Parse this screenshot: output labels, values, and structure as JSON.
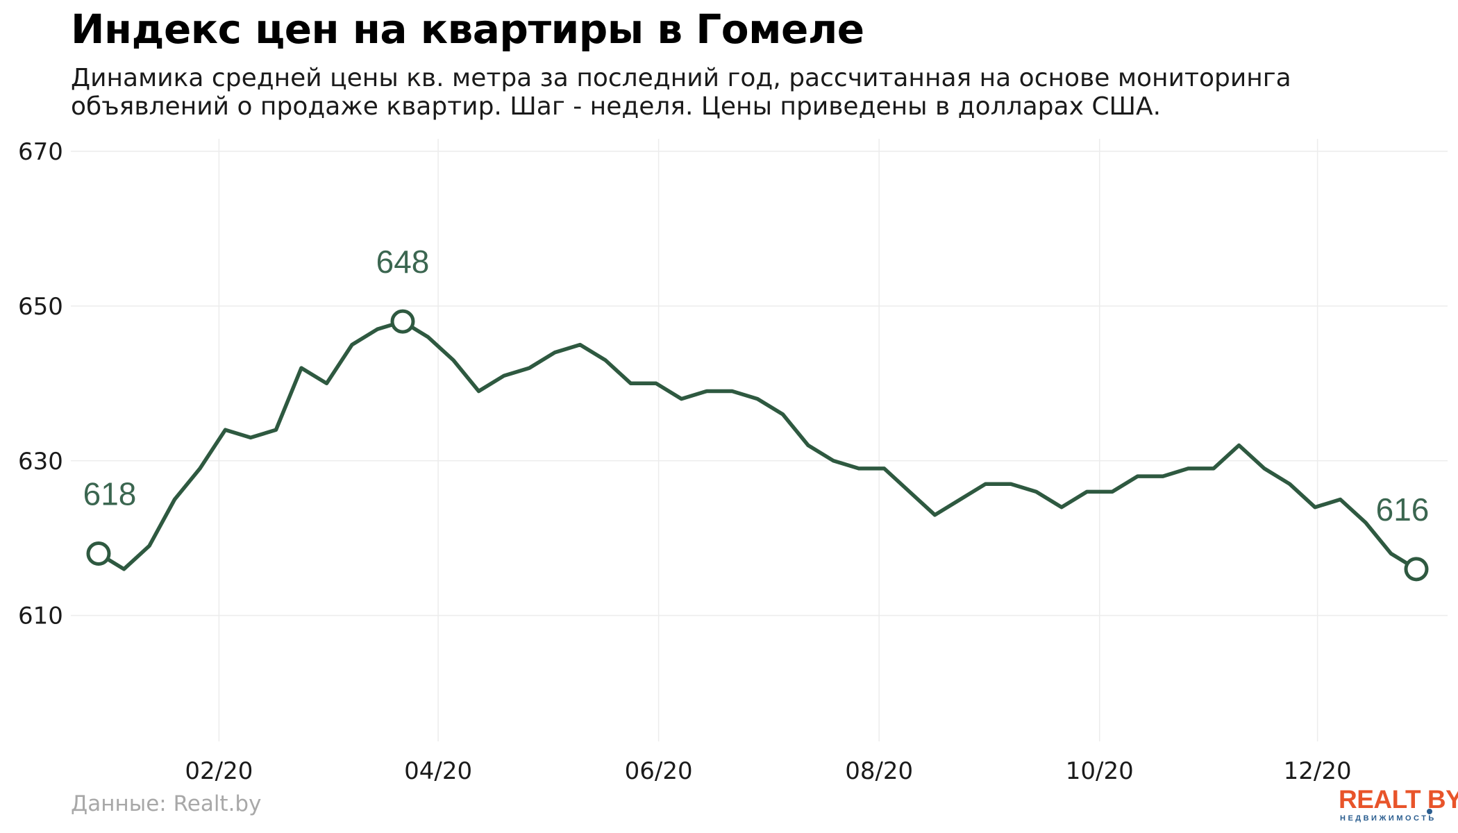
{
  "header": {
    "title": "Индекс цен на квартиры в Гомеле",
    "subtitle": "Динамика средней цены кв. метра за последний год, рассчитанная на основе мониторинга объявлений о продаже квартир. Шаг - неделя. Цены приведены в долларах США."
  },
  "source": "Данные: Realt.by",
  "logo": {
    "main": "REALT BY",
    "sub": "НЕДВИЖИМОСТЬ"
  },
  "colors": {
    "line": "#2e5940",
    "grid": "#ececec",
    "label": "#3b6650"
  },
  "chart_data": {
    "type": "line",
    "title": "Индекс цен на квартиры в Гомеле",
    "xlabel": "",
    "ylabel": "",
    "ylim": [
      594,
      670
    ],
    "yticks": [
      610,
      630,
      650,
      670
    ],
    "xticks": [
      {
        "label": "02/20",
        "week": 4.75
      },
      {
        "label": "04/20",
        "week": 13.4
      },
      {
        "label": "06/20",
        "week": 22.1
      },
      {
        "label": "08/20",
        "week": 30.8
      },
      {
        "label": "10/20",
        "week": 39.5
      },
      {
        "label": "12/20",
        "week": 48.1
      }
    ],
    "grid": true,
    "series": [
      {
        "values": [
          618,
          616,
          619,
          625,
          629,
          634,
          633,
          634,
          642,
          640,
          645,
          647,
          648,
          646,
          643,
          639,
          641,
          642,
          644,
          645,
          643,
          640,
          640,
          638,
          639,
          639,
          638,
          636,
          632,
          630,
          629,
          629,
          626,
          623,
          625,
          627,
          627,
          626,
          624,
          626,
          626,
          628,
          628,
          629,
          629,
          632,
          629,
          627,
          624,
          625,
          622,
          618,
          616
        ]
      }
    ],
    "annotations": [
      {
        "index": 0,
        "label": "618"
      },
      {
        "index": 12,
        "label": "648"
      },
      {
        "index": 52,
        "label": "616"
      }
    ]
  }
}
